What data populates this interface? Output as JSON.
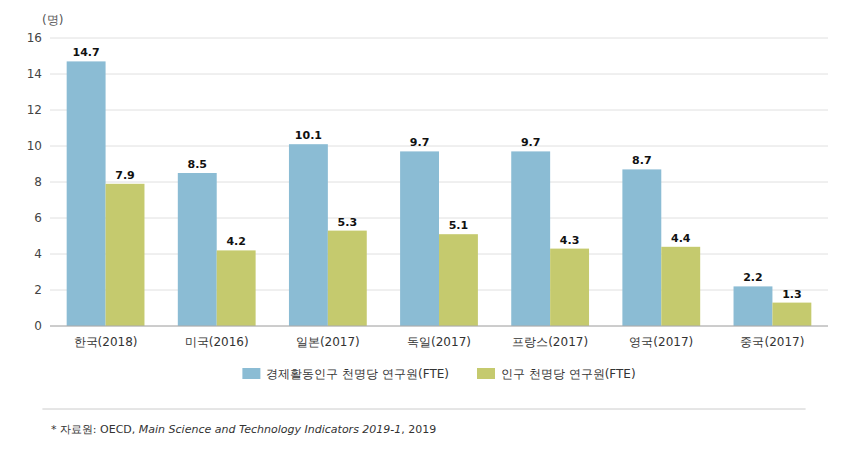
{
  "chart_data": {
    "type": "bar",
    "categories": [
      "한국(2018)",
      "미국(2016)",
      "일본(2017)",
      "독일(2017)",
      "프랑스(2017)",
      "영국(2017)",
      "중국(2017)"
    ],
    "series": [
      {
        "name": "경제활동인구 천명당 연구원(FTE)",
        "color": "#8BBCD4",
        "values": [
          14.7,
          8.5,
          10.1,
          9.7,
          9.7,
          8.7,
          2.2
        ]
      },
      {
        "name": "인구 천명당 연구원(FTE)",
        "color": "#C5CA6E",
        "values": [
          7.9,
          4.2,
          5.3,
          5.1,
          4.3,
          4.4,
          1.3
        ]
      }
    ],
    "y_label": "(명)",
    "ylim": [
      0,
      16
    ],
    "yticks": [
      0,
      2,
      4,
      6,
      8,
      10,
      12,
      14,
      16
    ],
    "grid": true,
    "legend": "bottom",
    "data_labels": true,
    "annotations": [
      "* 자료원: OECD, ",
      "Main Science and Technology Indicators 2019-1",
      ", 2019"
    ]
  }
}
